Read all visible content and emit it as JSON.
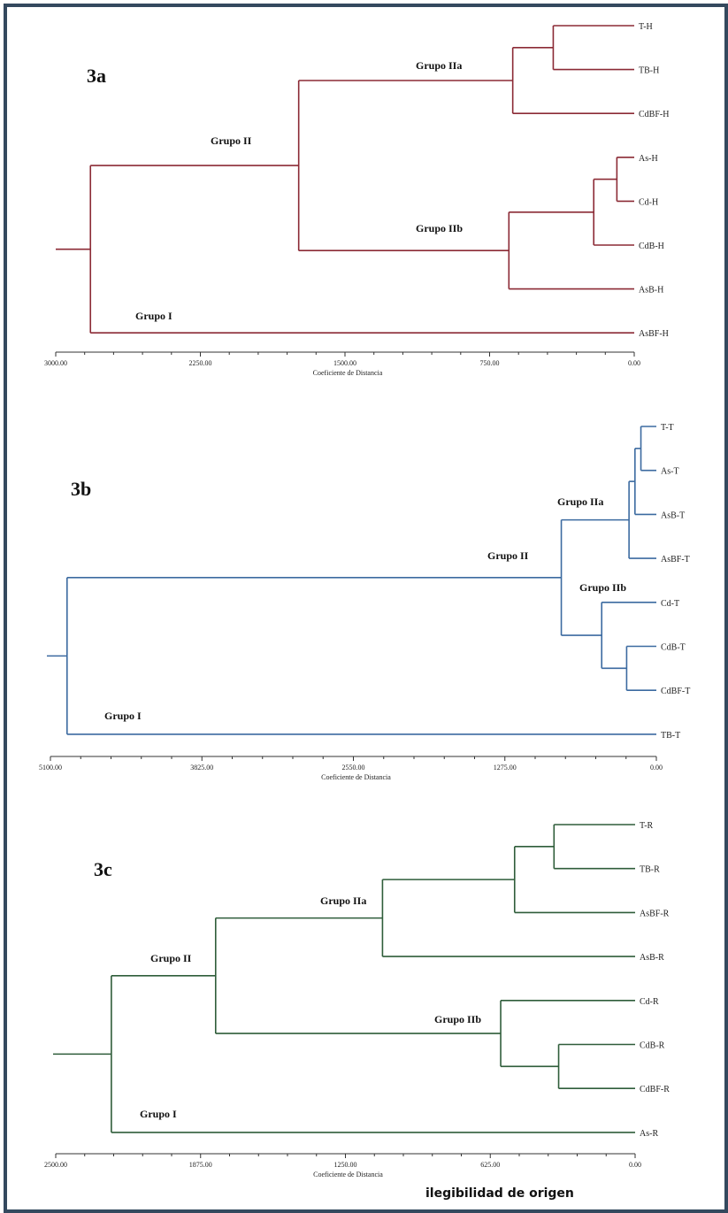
{
  "panels": [
    {
      "id": "3a",
      "label": "3a",
      "color": "#8b2a35",
      "axis_title": "Coeficiente de Distancia",
      "axis_range": [
        3000,
        0
      ],
      "ticks": [
        {
          "value": 3000,
          "label": "3000.00"
        },
        {
          "value": 2250,
          "label": "2250.00"
        },
        {
          "value": 1500,
          "label": "1500.00"
        },
        {
          "value": 750,
          "label": "750.00"
        },
        {
          "value": 0,
          "label": "0.00"
        }
      ],
      "leaves": [
        "T-H",
        "TB-H",
        "CdBF-H",
        "As-H",
        "Cd-H",
        "CdB-H",
        "AsB-H",
        "AsBF-H"
      ],
      "merges": [
        {
          "a": "L0",
          "b": "L1",
          "height": 420
        },
        {
          "a": "L3",
          "b": "L4",
          "height": 90
        },
        {
          "a": "C1",
          "b": "L5",
          "height": 210
        },
        {
          "a": "C0",
          "b": "L2",
          "height": 630
        },
        {
          "a": "C2",
          "b": "L6",
          "height": 650
        },
        {
          "a": "C3",
          "b": "C4",
          "height": 1740
        },
        {
          "a": "C5",
          "b": "L7",
          "height": 2820
        }
      ],
      "group_labels": {
        "grupo_iia": "Grupo IIa",
        "grupo_iib": "Grupo IIb",
        "grupo_ii": "Grupo II",
        "grupo_i": "Grupo I"
      }
    },
    {
      "id": "3b",
      "label": "3b",
      "color": "#3b6aa0",
      "axis_title": "Coeficiente de Distancia",
      "axis_range": [
        5100,
        0
      ],
      "ticks": [
        {
          "value": 5100,
          "label": "5100.00"
        },
        {
          "value": 3825,
          "label": "3825.00"
        },
        {
          "value": 2550,
          "label": "2550.00"
        },
        {
          "value": 1275,
          "label": "1275.00"
        },
        {
          "value": 0,
          "label": "0.00"
        }
      ],
      "leaves": [
        "T-T",
        "As-T",
        "AsB-T",
        "AsBF-T",
        "Cd-T",
        "CdB-T",
        "CdBF-T",
        "TB-T"
      ],
      "merges": [
        {
          "a": "L0",
          "b": "L1",
          "height": 130
        },
        {
          "a": "C0",
          "b": "L2",
          "height": 180
        },
        {
          "a": "C1",
          "b": "L3",
          "height": 230
        },
        {
          "a": "L5",
          "b": "L6",
          "height": 250
        },
        {
          "a": "L4",
          "b": "C3",
          "height": 460
        },
        {
          "a": "C2",
          "b": "C4",
          "height": 800
        },
        {
          "a": "C5",
          "b": "L7",
          "height": 4960
        }
      ],
      "group_labels": {
        "grupo_iia": "Grupo IIa",
        "grupo_iib": "Grupo IIb",
        "grupo_ii": "Grupo II",
        "grupo_i": "Grupo I"
      }
    },
    {
      "id": "3c",
      "label": "3c",
      "color": "#2f5d3a",
      "axis_title": "Coeficiente de Distancia",
      "axis_range": [
        2500,
        0
      ],
      "ticks": [
        {
          "value": 2500,
          "label": "2500.00"
        },
        {
          "value": 1875,
          "label": "1875.00"
        },
        {
          "value": 1250,
          "label": "1250.00"
        },
        {
          "value": 625,
          "label": "625.00"
        },
        {
          "value": 0,
          "label": "0.00"
        }
      ],
      "leaves": [
        "T-R",
        "TB-R",
        "AsBF-R",
        "AsB-R",
        "Cd-R",
        "CdB-R",
        "CdBF-R",
        "As-R"
      ],
      "merges": [
        {
          "a": "L0",
          "b": "L1",
          "height": 350
        },
        {
          "a": "C0",
          "b": "L2",
          "height": 520
        },
        {
          "a": "L5",
          "b": "L6",
          "height": 330
        },
        {
          "a": "L4",
          "b": "C2",
          "height": 580
        },
        {
          "a": "C1",
          "b": "L3",
          "height": 1090
        },
        {
          "a": "C4",
          "b": "C3",
          "height": 1810
        },
        {
          "a": "C5",
          "b": "L7",
          "height": 2260
        }
      ],
      "group_labels": {
        "grupo_iia": "Grupo IIa",
        "grupo_iib": "Grupo IIb",
        "grupo_ii": "Grupo II",
        "grupo_i": "Grupo I"
      }
    }
  ],
  "footer_note": "ilegibilidad de origen"
}
